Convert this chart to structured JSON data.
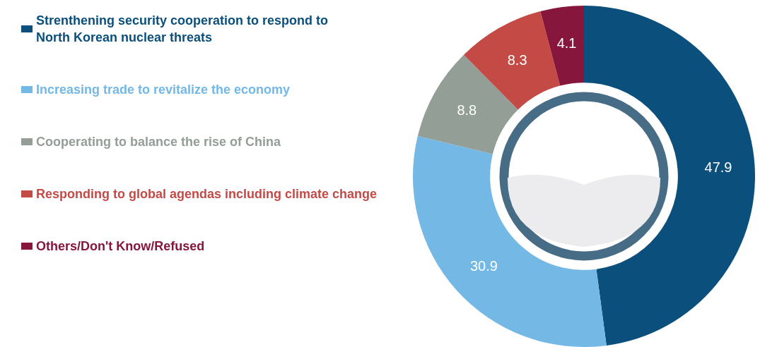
{
  "chart_data": {
    "type": "donut",
    "categories": [
      "Strenthening security cooperation to respond to\nNorth Korean nuclear threats",
      "Increasing trade to revitalize the economy",
      "Cooperating to balance the rise of China",
      "Responding to global agendas including climate change",
      "Others/Don't Know/Refused"
    ],
    "values": [
      47.9,
      30.9,
      8.8,
      8.3,
      4.1
    ],
    "colors": [
      "#0b4f7c",
      "#74b8e6",
      "#939e96",
      "#c44a46",
      "#86163c"
    ],
    "data_labels": true,
    "legend": "left"
  }
}
